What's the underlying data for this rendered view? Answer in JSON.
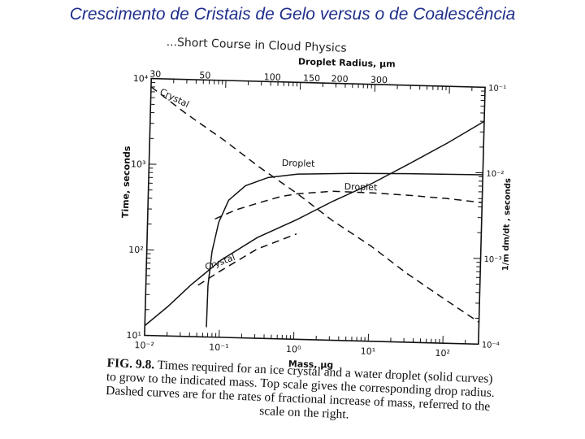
{
  "slide": {
    "title": "Crescimento de Cristais de Gelo versus o de Coalescência"
  },
  "book_header": "...Short Course in Cloud Physics",
  "caption": {
    "figure_label": "FIG. 9.8.",
    "lines": [
      "Times required for an ice crystal and a water droplet (solid curves)",
      "to grow to the indicated mass. Top scale gives the corresponding drop radius.",
      "Dashed curves are for the rates of fractional increase of mass, referred to the",
      "scale on the right."
    ]
  },
  "chart_data": {
    "type": "line",
    "xlabel": "Mass, μg",
    "ylabel": "Time, seconds",
    "y2label": "1/m dm/dt , seconds",
    "toplabel": "Droplet Radius, μm",
    "xscale": "log",
    "yscale": "log",
    "y2scale": "log",
    "xlim": [
      0.01,
      300
    ],
    "ylim": [
      10,
      10000
    ],
    "y2lim": [
      0.0001,
      0.1
    ],
    "x_ticks": [
      {
        "value": 0.01,
        "label": "10⁻²"
      },
      {
        "value": 0.1,
        "label": "10⁻¹"
      },
      {
        "value": 1,
        "label": "10⁰"
      },
      {
        "value": 10,
        "label": "10¹"
      },
      {
        "value": 100,
        "label": "10²"
      }
    ],
    "y_ticks": [
      {
        "value": 10,
        "label": "10¹"
      },
      {
        "value": 100,
        "label": "10²"
      },
      {
        "value": 1000,
        "label": "10³"
      },
      {
        "value": 10000,
        "label": "10⁴"
      }
    ],
    "y2_ticks": [
      {
        "value": 0.1,
        "label": "10⁻¹"
      },
      {
        "value": 0.01,
        "label": "10⁻²"
      },
      {
        "value": 0.001,
        "label": "10⁻³"
      },
      {
        "value": 0.0001,
        "label": "10⁻⁴"
      }
    ],
    "top_ticks": [
      {
        "value": 0.0113,
        "label": "30"
      },
      {
        "value": 0.0524,
        "label": "50"
      },
      {
        "value": 0.419,
        "label": "100"
      },
      {
        "value": 1.41,
        "label": "150"
      },
      {
        "value": 3.35,
        "label": "200"
      },
      {
        "value": 11.3,
        "label": "300"
      }
    ],
    "series": [
      {
        "name": "Droplet",
        "style": "solid",
        "axis": "left",
        "label_at": {
          "x": 1.0,
          "y": 1050
        },
        "points": [
          [
            0.067,
            13
          ],
          [
            0.068,
            40
          ],
          [
            0.075,
            100
          ],
          [
            0.09,
            220
          ],
          [
            0.12,
            400
          ],
          [
            0.2,
            600
          ],
          [
            0.4,
            760
          ],
          [
            1,
            850
          ],
          [
            5,
            900
          ],
          [
            30,
            930
          ],
          [
            300,
            950
          ]
        ]
      },
      {
        "name": "Crystal",
        "style": "solid",
        "axis": "left",
        "label_at": null,
        "points": [
          [
            0.01,
            13
          ],
          [
            0.02,
            22
          ],
          [
            0.04,
            40
          ],
          [
            0.1,
            80
          ],
          [
            0.3,
            150
          ],
          [
            1,
            250
          ],
          [
            3,
            420
          ],
          [
            10,
            700
          ],
          [
            30,
            1200
          ],
          [
            100,
            2200
          ],
          [
            300,
            4000
          ]
        ]
      },
      {
        "name": "Crystal",
        "style": "dashed",
        "axis": "right",
        "label_at": {
          "x": 0.02,
          "y2": 0.056
        },
        "points": [
          [
            0.01,
            0.08
          ],
          [
            0.03,
            0.04
          ],
          [
            0.1,
            0.02
          ],
          [
            0.3,
            0.01
          ],
          [
            1,
            0.005
          ],
          [
            3,
            0.0025
          ],
          [
            10,
            0.0013
          ],
          [
            30,
            0.00065
          ],
          [
            100,
            0.00033
          ],
          [
            300,
            0.00018
          ]
        ]
      },
      {
        "name": "Droplet",
        "style": "dashed",
        "axis": "right",
        "label_at": {
          "x": 7,
          "y2": 0.0058
        },
        "points": [
          [
            0.08,
            0.0024
          ],
          [
            0.15,
            0.0031
          ],
          [
            0.3,
            0.0038
          ],
          [
            0.6,
            0.0046
          ],
          [
            1,
            0.005
          ],
          [
            3,
            0.0055
          ],
          [
            10,
            0.0054
          ],
          [
            30,
            0.0052
          ],
          [
            100,
            0.0049
          ],
          [
            300,
            0.0045
          ]
        ]
      },
      {
        "name": "Crystal",
        "style": "dashed",
        "axis": "left",
        "label_at": {
          "x": 0.1,
          "y": 70
        },
        "points": [
          [
            0.05,
            40
          ],
          [
            0.1,
            60
          ],
          [
            0.3,
            110
          ],
          [
            1,
            170
          ]
        ]
      }
    ]
  }
}
